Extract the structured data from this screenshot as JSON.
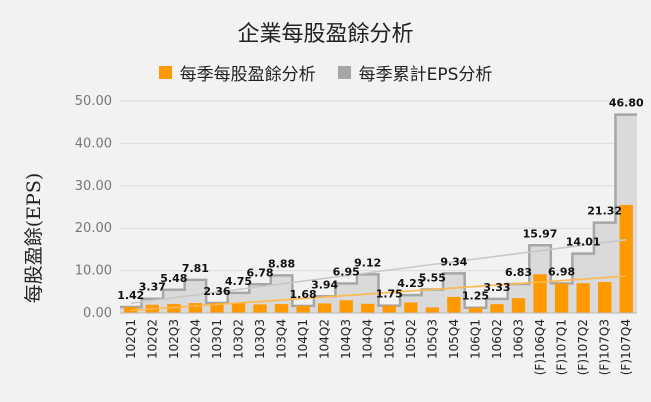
{
  "chart_data": {
    "type": "bar",
    "title": "企業每股盈餘分析",
    "ylabel": "每股盈餘(EPS)",
    "ylim": [
      0,
      50
    ],
    "yticks": [
      "0.00",
      "10.00",
      "20.00",
      "30.00",
      "40.00",
      "50.00"
    ],
    "legend_position": "top",
    "grid": true,
    "categories": [
      "102Q1",
      "102Q2",
      "102Q3",
      "102Q4",
      "103Q1",
      "103Q2",
      "103Q3",
      "103Q4",
      "104Q1",
      "104Q2",
      "104Q3",
      "104Q4",
      "105Q1",
      "105Q2",
      "105Q3",
      "105Q4",
      "106Q1",
      "106Q2",
      "106Q3",
      "(F)106Q4",
      "(F)107Q1",
      "(F)107Q2",
      "(F)107Q3",
      "(F)107Q4"
    ],
    "series": [
      {
        "name": "每季每股盈餘分析",
        "type": "bar",
        "color": "#ff9900",
        "values": [
          1.42,
          1.95,
          2.11,
          2.33,
          2.36,
          2.39,
          2.03,
          2.1,
          1.68,
          2.26,
          3.01,
          2.17,
          1.75,
          2.48,
          1.32,
          3.79,
          1.25,
          2.08,
          3.5,
          9.14,
          6.98,
          7.03,
          7.31,
          25.48
        ]
      },
      {
        "name": "每季累計EPS分析",
        "type": "step-area",
        "color": "#a6a6a6",
        "values": [
          1.42,
          3.37,
          5.48,
          7.81,
          2.36,
          4.75,
          6.78,
          8.88,
          1.68,
          3.94,
          6.95,
          9.12,
          1.75,
          4.23,
          5.55,
          9.34,
          1.25,
          3.33,
          6.83,
          15.97,
          6.98,
          14.01,
          21.32,
          46.8
        ],
        "labels": [
          "1.42",
          "3.37",
          "5.48",
          "7.81",
          "2.36",
          "4.75",
          "6.78",
          "8.88",
          "1.68",
          "3.94",
          "6.95",
          "9.12",
          "1.75",
          "4.23",
          "5.55",
          "9.34",
          "1.25",
          "3.33",
          "6.83",
          "15.97",
          "6.98",
          "14.01",
          "21.32",
          "46.80"
        ]
      }
    ],
    "trendlines": [
      {
        "series": "每季每股盈餘分析",
        "color": "#ffb84d",
        "start": 0.6,
        "end": 8.7
      },
      {
        "series": "每季累計EPS分析",
        "color": "#c8c8c8",
        "start": 2.3,
        "end": 17.3
      }
    ]
  }
}
